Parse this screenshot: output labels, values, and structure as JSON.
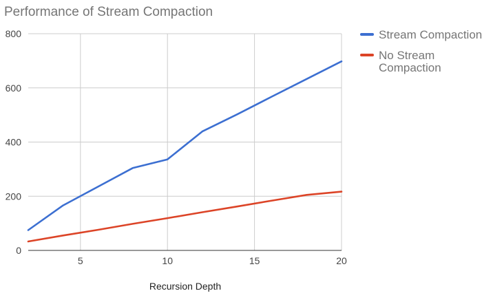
{
  "chart_data": {
    "type": "line",
    "title": "Performance of Stream Compaction",
    "xlabel": "Recursion Depth",
    "ylabel": "",
    "xlim": [
      2,
      20
    ],
    "ylim": [
      0,
      800
    ],
    "xticks": [
      5,
      10,
      15,
      20
    ],
    "yticks": [
      0,
      200,
      400,
      600,
      800
    ],
    "grid": true,
    "legend_position": "right",
    "series": [
      {
        "name": "Stream Compaction",
        "legend_lines": [
          "Stream Compaction"
        ],
        "color": "#3c6fd1",
        "x": [
          2,
          4,
          6,
          8,
          10,
          12,
          14,
          16,
          18,
          20
        ],
        "y": [
          75,
          166,
          235,
          304,
          336,
          439,
          502,
          568,
          633,
          698
        ]
      },
      {
        "name": "No Stream Compaction",
        "legend_lines": [
          "No Stream",
          "Compaction"
        ],
        "color": "#dc4427",
        "x": [
          2,
          4,
          6,
          8,
          10,
          12,
          14,
          16,
          18,
          20
        ],
        "y": [
          33,
          55,
          76,
          98,
          119,
          141,
          162,
          184,
          205,
          217
        ]
      }
    ]
  }
}
